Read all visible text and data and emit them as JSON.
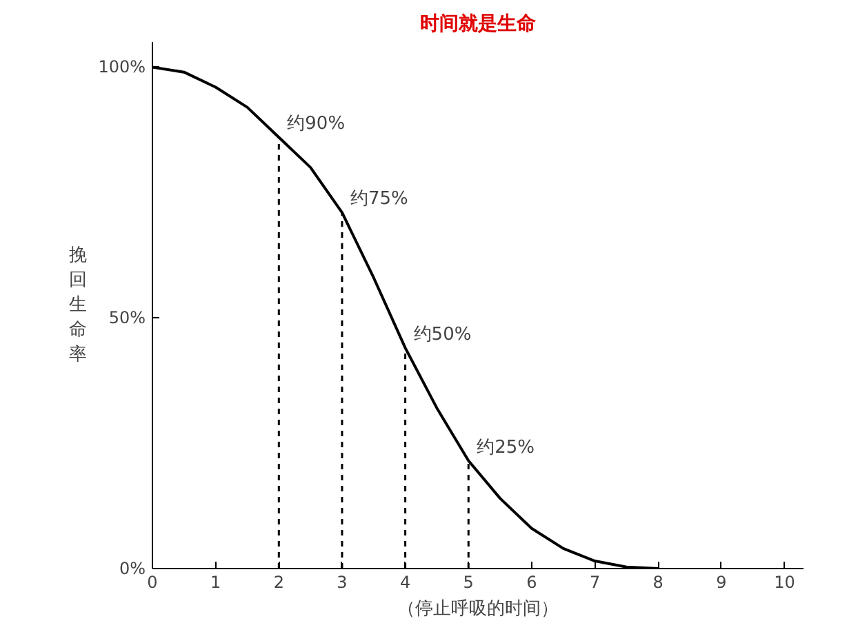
{
  "chart_data": {
    "type": "line",
    "title": "时间就是生命",
    "xlabel": "（停止呼吸的时间）",
    "ylabel": "挽回生命率",
    "x": [
      0,
      0.5,
      1,
      1.5,
      2,
      2.5,
      3,
      3.5,
      4,
      4.5,
      5,
      5.5,
      6,
      6.5,
      7,
      7.5,
      8
    ],
    "series": [
      {
        "color": "#000000",
        "values": [
          100,
          99,
          96,
          92,
          86,
          80,
          71,
          58,
          44,
          32,
          21.5,
          14,
          8,
          4,
          1.5,
          0.3,
          0
        ]
      }
    ],
    "xlim": [
      0,
      10.3
    ],
    "ylim": [
      0,
      105
    ],
    "xticks": [
      0,
      1,
      2,
      3,
      4,
      5,
      6,
      7,
      8,
      9,
      10
    ],
    "yticks": [
      {
        "value": 0,
        "label": "0%"
      },
      {
        "value": 50,
        "label": "50%"
      },
      {
        "value": 100,
        "label": "100%"
      }
    ],
    "annotations": [
      {
        "text": "约90%",
        "x": 2,
        "y": 86
      },
      {
        "text": "约75%",
        "x": 3,
        "y": 71
      },
      {
        "text": "约50%",
        "x": 4,
        "y": 44
      },
      {
        "text": "约25%",
        "x": 5,
        "y": 21.5
      }
    ],
    "marker": "none",
    "line_style": "solid"
  }
}
